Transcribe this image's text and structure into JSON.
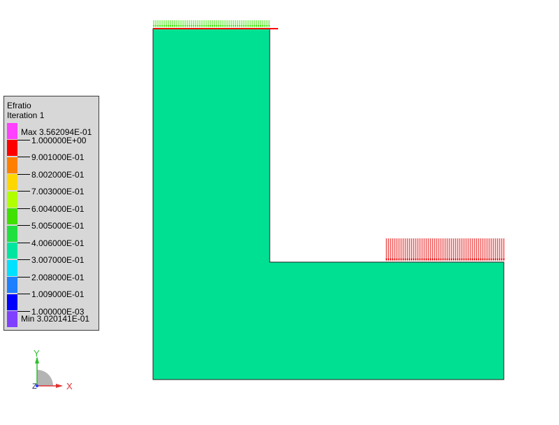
{
  "legend": {
    "title": "Efratio",
    "subtitle": "Iteration 1",
    "max_label": "Max 3.562094E-01",
    "min_label": "Min 3.020141E-01",
    "levels": [
      "1.000000E+00",
      "9.001000E-01",
      "8.002000E-01",
      "7.003000E-01",
      "6.004000E-01",
      "5.005000E-01",
      "4.006000E-01",
      "3.007000E-01",
      "2.008000E-01",
      "1.009000E-01",
      "1.000000E-03"
    ],
    "colors": [
      "#ff40ff",
      "#ff0000",
      "#ff7f00",
      "#ffd700",
      "#b2ff00",
      "#40e000",
      "#20e040",
      "#00e6a0",
      "#00e0ff",
      "#1e7fff",
      "#0000ff",
      "#8040ff"
    ]
  },
  "model": {
    "fill_color": "#00e093",
    "load_color_top": "#39e600",
    "load_color_right": "#e60000"
  },
  "triad": {
    "x_label": "X",
    "y_label": "Y",
    "z_label": "Z"
  }
}
